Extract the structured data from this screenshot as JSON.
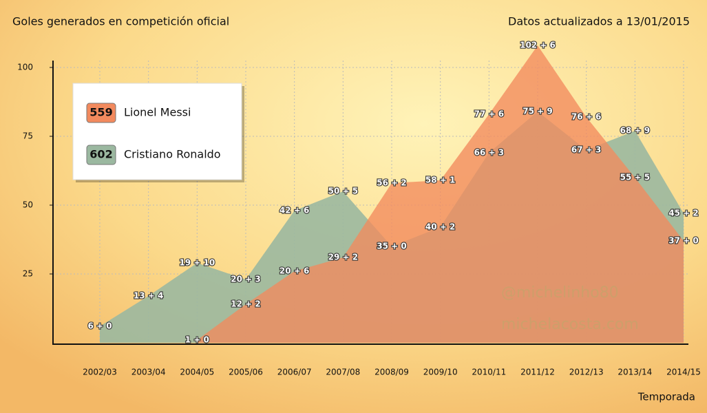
{
  "chart_data": {
    "type": "area",
    "title": "Goles generados en competición oficial",
    "subtitle": "Datos actualizados a 13/01/2015",
    "x_label": "Temporada",
    "annotations": [
      "@michelinho80",
      "michelacosta.com"
    ],
    "categories": [
      "2002/03",
      "2003/04",
      "2004/05",
      "2005/06",
      "2006/07",
      "2007/08",
      "2008/09",
      "2009/10",
      "2010/11",
      "2011/12",
      "2012/13",
      "2013/14",
      "2014/15"
    ],
    "series": [
      {
        "name": "Cristiano Ronaldo",
        "total": "602",
        "color": "#9bb8a0",
        "values": [
          6,
          17,
          29,
          23,
          48,
          55,
          35,
          42,
          69,
          84,
          70,
          77,
          47
        ],
        "value_labels": [
          "6 + 0",
          "13 + 4",
          "19 + 10",
          "20 + 3",
          "42 + 6",
          "50 + 5",
          "35 + 0",
          "40 + 2",
          "66 + 3",
          "75 + 9",
          "67 + 3",
          "68 + 9",
          "45 + 2"
        ]
      },
      {
        "name": "Lionel Messi",
        "total": "559",
        "color": "#f28a5e",
        "values": [
          null,
          null,
          1,
          14,
          26,
          31,
          58,
          59,
          83,
          108,
          82,
          60,
          37
        ],
        "value_labels": [
          null,
          null,
          "1 + 0",
          "12 + 2",
          "20 + 6",
          "29 + 2",
          "56 + 2",
          "58 + 1",
          "77 + 6",
          "102 + 6",
          "76 + 6",
          "55 + 5",
          "37 + 0"
        ]
      }
    ],
    "ylim": [
      0,
      102
    ],
    "yticks": [
      25,
      50,
      75,
      100
    ],
    "grid": true
  }
}
